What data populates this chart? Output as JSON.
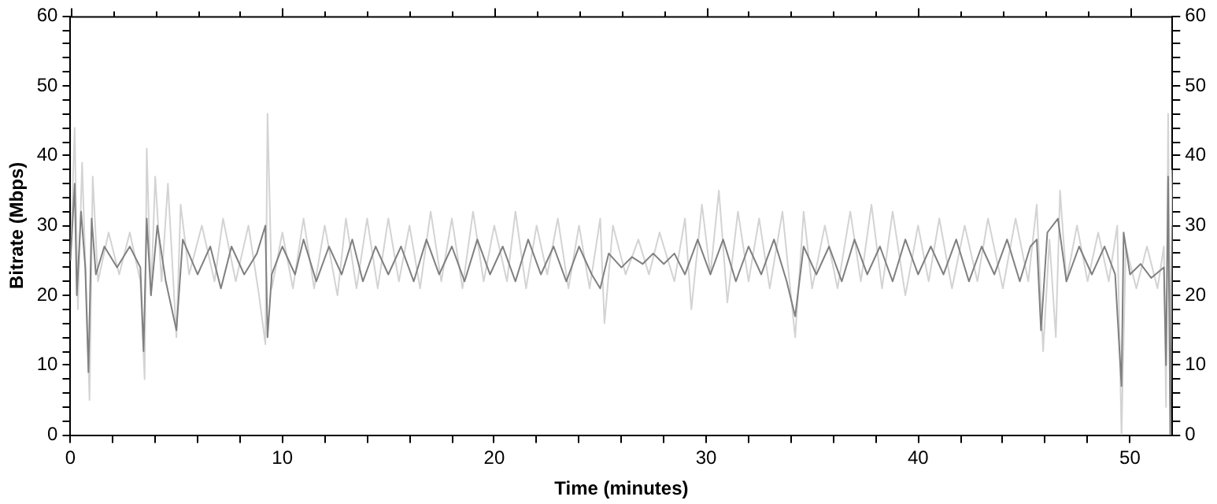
{
  "chart_data": {
    "type": "line",
    "xlabel": "Time (minutes)",
    "ylabel": "Bitrate (Mbps)",
    "xlim": [
      0,
      52
    ],
    "ylim": [
      0,
      60
    ],
    "y2lim": [
      0,
      60
    ],
    "xticks": [
      0,
      {
        "value": 2,
        "label": null
      },
      {
        "value": 4,
        "label": null
      },
      {
        "value": 6,
        "label": null
      },
      {
        "value": 8,
        "label": null
      },
      10,
      {
        "value": 12,
        "label": null
      },
      {
        "value": 14,
        "label": null
      },
      {
        "value": 16,
        "label": null
      },
      {
        "value": 18,
        "label": null
      },
      20,
      {
        "value": 22,
        "label": null
      },
      {
        "value": 24,
        "label": null
      },
      {
        "value": 26,
        "label": null
      },
      {
        "value": 28,
        "label": null
      },
      30,
      {
        "value": 32,
        "label": null
      },
      {
        "value": 34,
        "label": null
      },
      {
        "value": 36,
        "label": null
      },
      {
        "value": 38,
        "label": null
      },
      40,
      {
        "value": 42,
        "label": null
      },
      {
        "value": 44,
        "label": null
      },
      {
        "value": 46,
        "label": null
      },
      {
        "value": 48,
        "label": null
      },
      50
    ],
    "yticks": [
      0,
      {
        "value": 2,
        "label": null
      },
      {
        "value": 4,
        "label": null
      },
      {
        "value": 6,
        "label": null
      },
      {
        "value": 8,
        "label": null
      },
      10,
      {
        "value": 12,
        "label": null
      },
      {
        "value": 14,
        "label": null
      },
      {
        "value": 16,
        "label": null
      },
      {
        "value": 18,
        "label": null
      },
      20,
      {
        "value": 22,
        "label": null
      },
      {
        "value": 24,
        "label": null
      },
      {
        "value": 26,
        "label": null
      },
      {
        "value": 28,
        "label": null
      },
      30,
      {
        "value": 32,
        "label": null
      },
      {
        "value": 34,
        "label": null
      },
      {
        "value": 36,
        "label": null
      },
      {
        "value": 38,
        "label": null
      },
      40,
      {
        "value": 42,
        "label": null
      },
      {
        "value": 44,
        "label": null
      },
      {
        "value": 46,
        "label": null
      },
      {
        "value": 48,
        "label": null
      },
      50,
      {
        "value": 52,
        "label": null
      },
      {
        "value": 54,
        "label": null
      },
      {
        "value": 56,
        "label": null
      },
      {
        "value": 58,
        "label": null
      },
      60
    ],
    "y2ticks": [
      0,
      {
        "value": 2,
        "label": null
      },
      {
        "value": 4,
        "label": null
      },
      {
        "value": 6,
        "label": null
      },
      {
        "value": 8,
        "label": null
      },
      10,
      {
        "value": 12,
        "label": null
      },
      {
        "value": 14,
        "label": null
      },
      {
        "value": 16,
        "label": null
      },
      {
        "value": 18,
        "label": null
      },
      20,
      {
        "value": 22,
        "label": null
      },
      {
        "value": 24,
        "label": null
      },
      {
        "value": 26,
        "label": null
      },
      {
        "value": 28,
        "label": null
      },
      30,
      {
        "value": 32,
        "label": null
      },
      {
        "value": 34,
        "label": null
      },
      {
        "value": 36,
        "label": null
      },
      {
        "value": 38,
        "label": null
      },
      40,
      {
        "value": 42,
        "label": null
      },
      {
        "value": 44,
        "label": null
      },
      {
        "value": 46,
        "label": null
      },
      {
        "value": 48,
        "label": null
      },
      50,
      {
        "value": 52,
        "label": null
      },
      {
        "value": 54,
        "label": null
      },
      {
        "value": 56,
        "label": null
      },
      {
        "value": 58,
        "label": null
      },
      60
    ],
    "grid": false,
    "legend": false,
    "marker": "none",
    "line_style": "solid",
    "series": [
      {
        "color": "#d3d3d3",
        "x": [
          0,
          0.2,
          0.35,
          0.55,
          0.75,
          0.9,
          1.05,
          1.3,
          1.8,
          2.3,
          2.8,
          3.3,
          3.5,
          3.6,
          3.8,
          4,
          4.3,
          4.6,
          5,
          5.2,
          5.6,
          6.2,
          6.8,
          7.2,
          7.8,
          8.4,
          8.9,
          9.2,
          9.3,
          9.5,
          10,
          10.5,
          11,
          11.5,
          12,
          12.6,
          13,
          13.5,
          14,
          14.5,
          15,
          15.5,
          16,
          16.5,
          17,
          17.5,
          18,
          18.5,
          19,
          19.5,
          20,
          20.6,
          21,
          21.5,
          22,
          22.5,
          23,
          23.5,
          24,
          24.5,
          25,
          25.2,
          25.6,
          26.2,
          26.8,
          27.3,
          27.8,
          28.5,
          29,
          29.3,
          29.8,
          30.2,
          30.6,
          31,
          31.5,
          32,
          32.5,
          33,
          33.6,
          34.2,
          34.6,
          35,
          35.6,
          36.2,
          36.8,
          37.3,
          37.8,
          38.3,
          38.8,
          39.4,
          40,
          40.5,
          41,
          41.6,
          42.2,
          42.8,
          43.3,
          44,
          44.6,
          45.2,
          45.6,
          45.9,
          46.2,
          46.5,
          46.7,
          47,
          47.5,
          48,
          48.5,
          49,
          49.4,
          49.6,
          49.8,
          50.3,
          50.8,
          51.3,
          51.6,
          51.7,
          51.8,
          51.9,
          52
        ],
        "values": [
          25,
          44,
          18,
          39,
          20,
          5,
          37,
          22,
          29,
          23,
          29,
          22,
          8,
          41,
          20,
          37,
          22,
          36,
          14,
          33,
          23,
          30,
          22,
          31,
          22,
          30,
          20,
          13,
          46,
          21,
          29,
          21,
          31,
          21,
          30,
          20,
          31,
          21,
          31,
          21,
          31,
          22,
          30,
          21,
          32,
          22,
          31,
          21,
          32,
          22,
          30,
          22,
          32,
          21,
          30,
          23,
          31,
          21,
          30,
          21,
          31,
          16,
          30,
          23,
          28,
          23,
          29,
          22,
          31,
          18,
          33,
          23,
          35,
          19,
          32,
          22,
          31,
          21,
          32,
          14,
          32,
          21,
          30,
          21,
          32,
          22,
          33,
          21,
          32,
          20,
          30,
          22,
          31,
          21,
          30,
          22,
          31,
          21,
          31,
          22,
          33,
          12,
          28,
          14,
          35,
          22,
          30,
          22,
          29,
          22,
          30,
          0,
          27,
          21,
          27,
          21,
          27,
          4,
          46,
          8,
          38
        ]
      },
      {
        "color": "#808080",
        "x": [
          0,
          0.2,
          0.3,
          0.5,
          0.7,
          0.85,
          1,
          1.2,
          1.6,
          2.2,
          2.8,
          3.3,
          3.45,
          3.6,
          3.8,
          4.1,
          4.5,
          5,
          5.3,
          6,
          6.6,
          7.1,
          7.6,
          8.2,
          8.8,
          9.2,
          9.3,
          9.5,
          10,
          10.6,
          11,
          11.6,
          12.2,
          12.8,
          13.3,
          13.8,
          14.4,
          15,
          15.6,
          16.2,
          16.8,
          17.4,
          18,
          18.6,
          19.2,
          19.8,
          20.4,
          21,
          21.6,
          22.2,
          22.8,
          23.4,
          24,
          24.6,
          25,
          25.4,
          26,
          26.5,
          27,
          27.5,
          28,
          28.5,
          29,
          29.6,
          30.2,
          30.8,
          31.4,
          32,
          32.6,
          33.2,
          33.8,
          34.2,
          34.6,
          35.2,
          35.8,
          36.4,
          37,
          37.6,
          38.2,
          38.8,
          39.4,
          40,
          40.6,
          41.2,
          41.8,
          42.4,
          43,
          43.6,
          44.2,
          44.8,
          45.3,
          45.6,
          45.8,
          46.1,
          46.6,
          47,
          47.6,
          48.2,
          48.8,
          49.3,
          49.6,
          49.7,
          50,
          50.5,
          51,
          51.6,
          51.7,
          51.8,
          51.9,
          52
        ],
        "values": [
          25,
          36,
          20,
          32,
          24,
          9,
          31,
          23,
          27,
          24,
          27,
          24,
          12,
          31,
          20,
          30,
          22,
          15,
          28,
          23,
          27,
          21,
          27,
          23,
          26,
          30,
          14,
          23,
          27,
          23,
          28,
          22,
          27,
          23,
          28,
          22,
          27,
          23,
          27,
          22,
          28,
          23,
          27,
          22,
          28,
          23,
          27,
          22,
          28,
          23,
          27,
          22,
          27,
          23,
          21,
          26,
          24,
          25.5,
          24.5,
          26,
          24.5,
          26,
          23,
          28,
          23,
          28,
          22,
          27,
          23,
          28,
          22,
          17,
          27,
          23,
          27,
          22,
          28,
          23,
          27,
          22,
          28,
          23,
          27,
          23,
          28,
          22,
          27,
          23,
          28,
          22,
          27,
          28,
          15,
          29,
          31,
          22,
          27,
          23,
          27,
          23,
          7,
          29,
          23,
          24.5,
          22.5,
          24,
          10,
          37,
          0,
          30
        ]
      }
    ]
  }
}
